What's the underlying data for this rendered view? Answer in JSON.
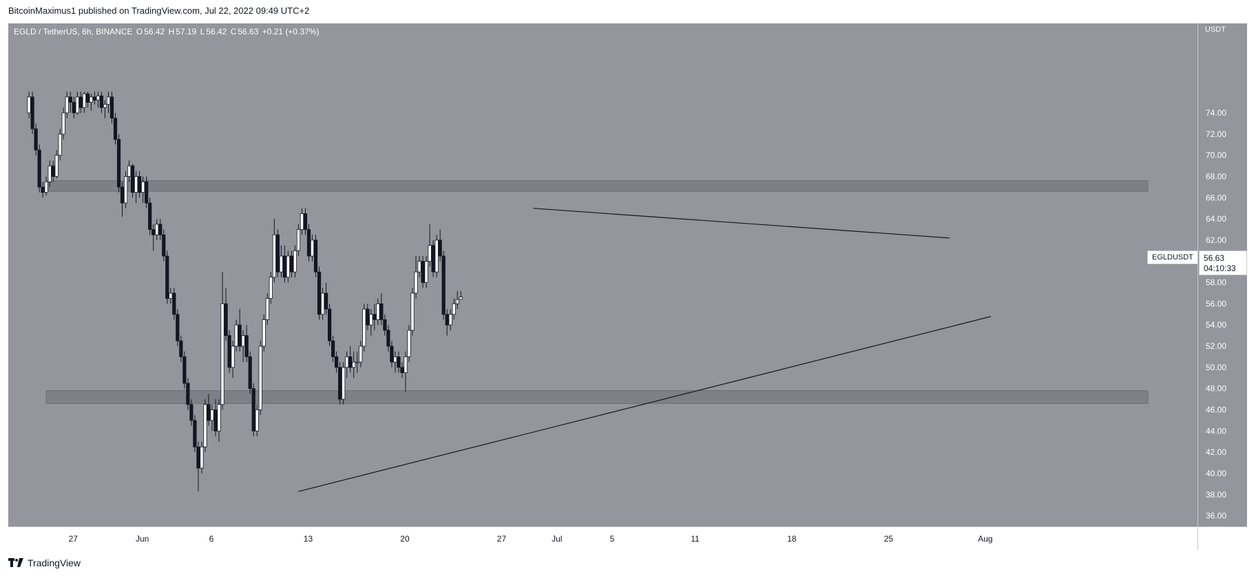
{
  "publisher_line": "BitcoinMaximus1 published on TradingView.com, Jul 22, 2022 09:49 UTC+2",
  "legend": {
    "symbol_label": "EGLD / TetherUS, 6h, BINANCE",
    "o_label": "O",
    "o_value": "56.42",
    "h_label": "H",
    "h_value": "57.19",
    "l_label": "L",
    "l_value": "56.42",
    "c_label": "C",
    "c_value": "56.63",
    "change": "+0.21 (+0.37%)"
  },
  "axis_unit": "USDT",
  "symbol_tag": "EGLDUSDT",
  "last_price": "56.63",
  "countdown": "04:10:33",
  "footer_brand": "TradingView",
  "colors": {
    "background": "#94959d",
    "up_candle": "#ffffff",
    "down_candle": "#131722",
    "zone": "#6b6d75",
    "trendline": "#131722"
  },
  "chart_data": {
    "type": "candlestick",
    "ylim": [
      35,
      76
    ],
    "yticks": [
      "36.00",
      "38.00",
      "40.00",
      "42.00",
      "44.00",
      "46.00",
      "48.00",
      "50.00",
      "52.00",
      "54.00",
      "56.00",
      "58.00",
      "60.00",
      "62.00",
      "64.00",
      "66.00",
      "68.00",
      "70.00",
      "72.00",
      "74.00"
    ],
    "xticks": [
      {
        "label": "27",
        "day": -10
      },
      {
        "label": "Jun",
        "day": -5
      },
      {
        "label": "6",
        "day": 0
      },
      {
        "label": "13",
        "day": 7
      },
      {
        "label": "20",
        "day": 14
      },
      {
        "label": "27",
        "day": 21
      },
      {
        "label": "Jul",
        "day": 25
      },
      {
        "label": "5",
        "day": 29
      },
      {
        "label": "11",
        "day": 35
      },
      {
        "label": "18",
        "day": 42
      },
      {
        "label": "25",
        "day": 49
      },
      {
        "label": "Aug",
        "day": 56
      }
    ],
    "zones": [
      {
        "low": 66.6,
        "high": 67.6
      },
      {
        "low": 46.6,
        "high": 47.8
      }
    ],
    "trendlines": [
      {
        "from": {
          "day": 23.3,
          "price": 65.0
        },
        "to": {
          "day": 53.4,
          "price": 62.2
        }
      },
      {
        "from": {
          "day": 6.3,
          "price": 38.3
        },
        "to": {
          "day": 56.4,
          "price": 54.8
        }
      }
    ],
    "ohlc": [
      [
        74.0,
        76.0,
        73.5,
        75.5
      ],
      [
        75.5,
        76.0,
        72.0,
        72.5
      ],
      [
        72.5,
        73.0,
        70.0,
        70.5
      ],
      [
        70.5,
        71.0,
        66.5,
        67.0
      ],
      [
        67.0,
        67.5,
        66.0,
        66.5
      ],
      [
        66.5,
        68.0,
        66.2,
        67.5
      ],
      [
        67.5,
        69.5,
        67.0,
        69.0
      ],
      [
        69.0,
        69.5,
        67.5,
        68.0
      ],
      [
        68.0,
        70.5,
        67.8,
        70.0
      ],
      [
        70.0,
        72.5,
        69.5,
        72.0
      ],
      [
        72.0,
        74.5,
        71.5,
        74.0
      ],
      [
        74.0,
        76.0,
        73.5,
        75.5
      ],
      [
        75.5,
        76.0,
        74.0,
        75.0
      ],
      [
        75.0,
        75.5,
        73.5,
        74.0
      ],
      [
        74.0,
        76.0,
        73.8,
        75.5
      ],
      [
        75.5,
        76.0,
        74.0,
        74.5
      ],
      [
        74.5,
        76.0,
        74.0,
        75.8
      ],
      [
        75.8,
        76.0,
        74.5,
        75.0
      ],
      [
        75.0,
        75.8,
        74.2,
        75.5
      ],
      [
        75.5,
        76.0,
        74.8,
        75.2
      ],
      [
        75.2,
        76.0,
        74.5,
        75.6
      ],
      [
        75.6,
        76.0,
        74.0,
        74.5
      ],
      [
        74.5,
        75.2,
        73.5,
        74.8
      ],
      [
        74.8,
        76.0,
        74.0,
        75.5
      ],
      [
        75.5,
        76.0,
        73.0,
        73.5
      ],
      [
        73.5,
        74.0,
        71.0,
        71.5
      ],
      [
        71.5,
        72.0,
        66.5,
        67.0
      ],
      [
        67.0,
        67.5,
        64.2,
        65.5
      ],
      [
        65.5,
        68.5,
        65.0,
        68.0
      ],
      [
        68.0,
        69.5,
        67.5,
        69.0
      ],
      [
        69.0,
        69.2,
        66.0,
        66.5
      ],
      [
        66.5,
        68.5,
        65.5,
        68.0
      ],
      [
        68.0,
        68.5,
        66.0,
        66.5
      ],
      [
        66.5,
        68.0,
        65.5,
        67.5
      ],
      [
        67.5,
        68.0,
        65.0,
        65.5
      ],
      [
        65.5,
        66.0,
        62.5,
        63.0
      ],
      [
        63.0,
        63.5,
        61.0,
        62.5
      ],
      [
        62.5,
        64.0,
        62.0,
        63.5
      ],
      [
        63.5,
        64.0,
        62.0,
        62.5
      ],
      [
        62.5,
        63.0,
        60.0,
        60.5
      ],
      [
        60.5,
        61.0,
        56.0,
        56.5
      ],
      [
        56.5,
        57.5,
        56.0,
        57.0
      ],
      [
        57.0,
        57.5,
        54.5,
        55.0
      ],
      [
        55.0,
        55.5,
        52.0,
        52.5
      ],
      [
        52.5,
        53.0,
        50.5,
        51.0
      ],
      [
        51.0,
        51.5,
        48.0,
        48.5
      ],
      [
        48.5,
        49.0,
        46.0,
        46.5
      ],
      [
        46.5,
        47.0,
        44.5,
        45.0
      ],
      [
        45.0,
        45.5,
        42.0,
        42.5
      ],
      [
        42.5,
        43.0,
        38.3,
        40.5
      ],
      [
        40.5,
        43.0,
        40.0,
        42.5
      ],
      [
        42.5,
        47.0,
        42.0,
        46.5
      ],
      [
        46.5,
        47.5,
        44.5,
        45.0
      ],
      [
        45.0,
        46.5,
        44.0,
        46.0
      ],
      [
        46.0,
        47.0,
        43.5,
        44.0
      ],
      [
        44.0,
        47.0,
        43.0,
        46.5
      ],
      [
        46.5,
        59.0,
        46.0,
        56.0
      ],
      [
        56.0,
        57.5,
        52.5,
        53.0
      ],
      [
        53.0,
        53.5,
        49.5,
        50.0
      ],
      [
        50.0,
        52.5,
        49.0,
        52.0
      ],
      [
        52.0,
        54.5,
        51.5,
        54.0
      ],
      [
        54.0,
        55.5,
        51.5,
        52.0
      ],
      [
        52.0,
        53.5,
        50.5,
        53.0
      ],
      [
        53.0,
        54.0,
        50.5,
        51.0
      ],
      [
        51.0,
        51.5,
        47.5,
        48.0
      ],
      [
        48.0,
        48.5,
        43.5,
        44.0
      ],
      [
        44.0,
        46.5,
        43.5,
        46.0
      ],
      [
        46.0,
        52.5,
        45.5,
        52.0
      ],
      [
        52.0,
        55.0,
        51.5,
        54.5
      ],
      [
        54.5,
        57.0,
        54.0,
        56.5
      ],
      [
        56.5,
        59.0,
        56.0,
        58.5
      ],
      [
        58.5,
        64.0,
        58.0,
        62.5
      ],
      [
        62.5,
        63.0,
        58.5,
        59.0
      ],
      [
        59.0,
        61.5,
        58.5,
        60.5
      ],
      [
        60.5,
        61.5,
        58.0,
        58.5
      ],
      [
        58.5,
        61.0,
        58.0,
        60.5
      ],
      [
        60.5,
        61.0,
        58.5,
        59.0
      ],
      [
        59.0,
        61.5,
        58.5,
        61.0
      ],
      [
        61.0,
        63.5,
        60.5,
        63.0
      ],
      [
        63.0,
        65.0,
        62.5,
        64.5
      ],
      [
        64.5,
        65.0,
        62.5,
        63.0
      ],
      [
        63.0,
        63.5,
        60.0,
        60.5
      ],
      [
        60.5,
        62.5,
        60.0,
        62.0
      ],
      [
        62.0,
        62.5,
        58.5,
        59.0
      ],
      [
        59.0,
        59.5,
        54.5,
        55.0
      ],
      [
        55.0,
        57.5,
        54.5,
        57.0
      ],
      [
        57.0,
        58.0,
        55.0,
        55.5
      ],
      [
        55.5,
        56.0,
        52.0,
        52.5
      ],
      [
        52.5,
        53.0,
        50.5,
        51.0
      ],
      [
        51.0,
        51.5,
        49.5,
        50.0
      ],
      [
        50.0,
        50.5,
        46.5,
        47.0
      ],
      [
        47.0,
        50.5,
        46.5,
        50.0
      ],
      [
        50.0,
        51.5,
        49.0,
        51.0
      ],
      [
        51.0,
        52.0,
        49.5,
        50.0
      ],
      [
        50.0,
        51.5,
        49.0,
        50.5
      ],
      [
        50.5,
        51.5,
        49.5,
        50.5
      ],
      [
        50.5,
        52.5,
        50.0,
        52.0
      ],
      [
        52.0,
        56.0,
        51.5,
        55.5
      ],
      [
        55.5,
        56.0,
        53.5,
        54.0
      ],
      [
        54.0,
        55.5,
        53.0,
        55.0
      ],
      [
        55.0,
        56.0,
        53.5,
        54.5
      ],
      [
        54.5,
        56.5,
        54.0,
        56.0
      ],
      [
        56.0,
        57.0,
        54.0,
        54.5
      ],
      [
        54.5,
        55.0,
        53.0,
        53.5
      ],
      [
        53.5,
        54.0,
        51.5,
        52.0
      ],
      [
        52.0,
        52.5,
        50.0,
        50.5
      ],
      [
        50.5,
        51.5,
        49.5,
        51.0
      ],
      [
        51.0,
        51.5,
        49.5,
        50.0
      ],
      [
        50.0,
        50.5,
        49.0,
        49.5
      ],
      [
        49.5,
        51.5,
        47.7,
        51.0
      ],
      [
        51.0,
        54.0,
        50.5,
        53.5
      ],
      [
        53.5,
        57.5,
        53.0,
        57.0
      ],
      [
        57.0,
        60.5,
        56.5,
        59.0
      ],
      [
        59.0,
        60.5,
        58.5,
        60.0
      ],
      [
        60.0,
        60.5,
        57.5,
        58.0
      ],
      [
        58.0,
        60.5,
        57.5,
        60.0
      ],
      [
        60.0,
        63.5,
        59.5,
        61.5
      ],
      [
        61.5,
        62.0,
        58.5,
        59.0
      ],
      [
        59.0,
        62.5,
        58.5,
        62.0
      ],
      [
        62.0,
        63.0,
        60.0,
        60.5
      ],
      [
        60.5,
        61.0,
        54.5,
        55.0
      ],
      [
        55.0,
        55.5,
        53.0,
        54.0
      ],
      [
        54.0,
        55.5,
        53.5,
        55.0
      ],
      [
        55.0,
        56.5,
        54.5,
        56.0
      ],
      [
        56.0,
        57.2,
        55.5,
        56.4
      ],
      [
        56.42,
        57.19,
        56.42,
        56.63
      ]
    ]
  }
}
